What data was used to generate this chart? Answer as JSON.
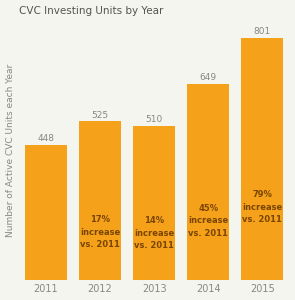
{
  "title": "CVC Investing Units by Year",
  "ylabel": "Number of Active CVC Units each Year",
  "categories": [
    "2011",
    "2012",
    "2013",
    "2014",
    "2015"
  ],
  "values": [
    448,
    525,
    510,
    649,
    801
  ],
  "bar_color": "#F5A11A",
  "annotations": [
    {
      "text": "",
      "x": 0
    },
    {
      "text": "17%\nincrease\nvs. 2011",
      "x": 1
    },
    {
      "text": "14%\nincrease\nvs. 2011",
      "x": 2
    },
    {
      "text": "45%\nincrease\nvs. 2011",
      "x": 3
    },
    {
      "text": "79%\nincrease\nvs. 2011",
      "x": 4
    }
  ],
  "ylim": [
    0,
    860
  ],
  "background_color": "#f5f5f0",
  "plot_bg_color": "#f5f5f0",
  "title_fontsize": 7.5,
  "label_fontsize": 6.5,
  "tick_fontsize": 7,
  "value_fontsize": 6.5,
  "annot_fontsize": 6.0,
  "annot_color": "#7A4500"
}
